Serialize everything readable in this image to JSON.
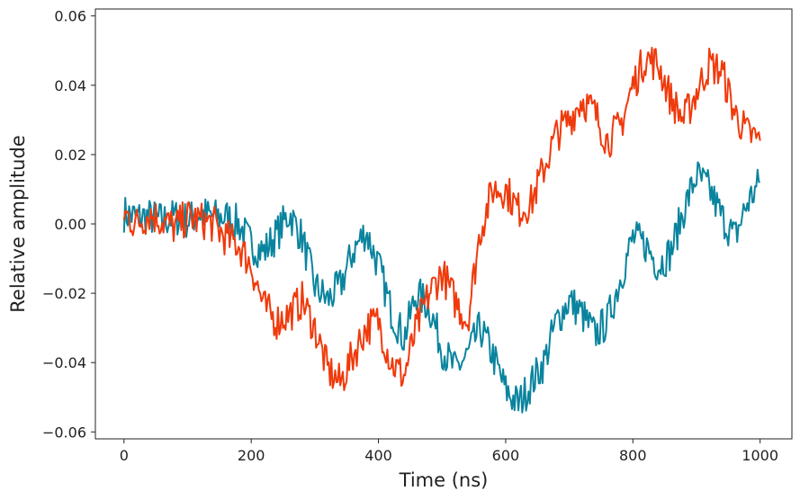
{
  "chart_data": {
    "type": "line",
    "xlabel": "Time (ns)",
    "ylabel": "Relative amplitude",
    "xlim": [
      -45,
      1050
    ],
    "ylim": [
      -0.062,
      0.062
    ],
    "grid": false,
    "x_ticks": [
      0,
      200,
      400,
      600,
      800,
      1000
    ],
    "x_tick_labels": [
      "0",
      "200",
      "400",
      "600",
      "800",
      "1000"
    ],
    "y_ticks": [
      -0.06,
      -0.04,
      -0.02,
      0.0,
      0.02,
      0.04,
      0.06
    ],
    "y_tick_labels": [
      "−0.06",
      "−0.04",
      "−0.02",
      "0.00",
      "0.02",
      "0.04",
      "0.06"
    ],
    "series": [
      {
        "color": "#0a849e",
        "x": [
          0,
          20,
          40,
          60,
          80,
          100,
          120,
          140,
          160,
          180,
          200,
          220,
          240,
          260,
          280,
          300,
          320,
          340,
          360,
          380,
          400,
          420,
          440,
          460,
          480,
          500,
          520,
          540,
          560,
          580,
          600,
          620,
          640,
          660,
          680,
          700,
          720,
          740,
          760,
          780,
          800,
          820,
          840,
          860,
          880,
          900,
          920,
          940,
          960,
          980,
          1000
        ],
        "values": [
          0.003,
          0.002,
          0.002,
          0.001,
          0.002,
          0.001,
          0.003,
          0.002,
          0.002,
          0.0,
          -0.006,
          -0.008,
          -0.003,
          0.003,
          -0.004,
          -0.018,
          -0.022,
          -0.018,
          -0.008,
          -0.002,
          -0.012,
          -0.025,
          -0.033,
          -0.02,
          -0.024,
          -0.036,
          -0.042,
          -0.038,
          -0.03,
          -0.038,
          -0.048,
          -0.052,
          -0.046,
          -0.04,
          -0.028,
          -0.022,
          -0.026,
          -0.032,
          -0.028,
          -0.016,
          -0.004,
          -0.006,
          -0.012,
          -0.008,
          0.004,
          0.014,
          0.01,
          0.002,
          -0.004,
          0.006,
          0.012
        ]
      },
      {
        "color": "#f03a0c",
        "x": [
          0,
          20,
          40,
          60,
          80,
          100,
          120,
          140,
          160,
          180,
          200,
          220,
          240,
          260,
          280,
          300,
          320,
          340,
          360,
          380,
          400,
          420,
          440,
          460,
          480,
          500,
          520,
          540,
          560,
          580,
          600,
          620,
          640,
          660,
          680,
          700,
          720,
          740,
          760,
          780,
          800,
          820,
          840,
          860,
          880,
          900,
          920,
          940,
          960,
          980,
          1000
        ],
        "values": [
          0.003,
          0.0,
          0.003,
          0.001,
          -0.001,
          0.002,
          0.001,
          0.0,
          -0.004,
          -0.006,
          -0.012,
          -0.024,
          -0.028,
          -0.026,
          -0.022,
          -0.03,
          -0.042,
          -0.046,
          -0.038,
          -0.03,
          -0.028,
          -0.04,
          -0.044,
          -0.03,
          -0.02,
          -0.014,
          -0.022,
          -0.028,
          -0.002,
          0.01,
          0.01,
          0.004,
          0.006,
          0.016,
          0.026,
          0.03,
          0.036,
          0.032,
          0.024,
          0.028,
          0.04,
          0.048,
          0.046,
          0.036,
          0.03,
          0.038,
          0.046,
          0.044,
          0.032,
          0.026,
          0.024
        ]
      }
    ]
  }
}
